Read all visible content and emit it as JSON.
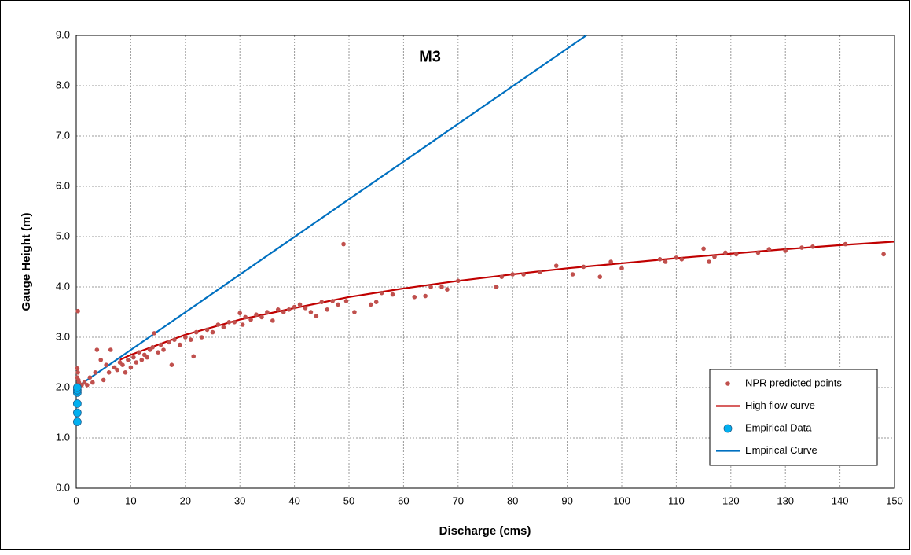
{
  "chart_data": {
    "type": "scatter",
    "title": "M3",
    "x_label": "Discharge (cms)",
    "y_label": "Gauge Height (m)",
    "xlim": [
      0,
      150
    ],
    "xticks": [
      0,
      10,
      20,
      30,
      40,
      50,
      60,
      70,
      80,
      90,
      100,
      110,
      120,
      130,
      140,
      150
    ],
    "ylim": [
      0,
      9
    ],
    "yticks": [
      {
        "value": 0,
        "label": "0.0"
      },
      {
        "value": 1,
        "label": "1.0"
      },
      {
        "value": 2,
        "label": "2.0"
      },
      {
        "value": 3,
        "label": "3.0"
      },
      {
        "value": 4,
        "label": "4.0"
      },
      {
        "value": 5,
        "label": "5.0"
      },
      {
        "value": 6,
        "label": "6.0"
      },
      {
        "value": 7,
        "label": "7.0"
      },
      {
        "value": 8,
        "label": "8.0"
      },
      {
        "value": 9,
        "label": "9.0"
      }
    ],
    "grid": true,
    "legend": "lower right",
    "series": [
      {
        "name": "NPR predicted points",
        "type": "scatter",
        "color": "#c0504d",
        "x": [
          0.3,
          0.2,
          0.3,
          0.2,
          0.4,
          0.5,
          1,
          1.5,
          2,
          2.5,
          3,
          3.5,
          3.8,
          4.5,
          5,
          5.5,
          6,
          6.3,
          7,
          7.5,
          8,
          8.5,
          9,
          9.5,
          10,
          10.5,
          11,
          11.5,
          12,
          12.5,
          13,
          13.5,
          14,
          14.3,
          15,
          15.5,
          16,
          17,
          17.5,
          18,
          19,
          20,
          21,
          21.5,
          22,
          23,
          24,
          25,
          26,
          27,
          28,
          29,
          30,
          30.5,
          31,
          32,
          33,
          34,
          35,
          36,
          37,
          38,
          39,
          40,
          41,
          42,
          43,
          44,
          45,
          46,
          47,
          48,
          49,
          49.5,
          51,
          54,
          55,
          56,
          58,
          62,
          64,
          65,
          67,
          68,
          70,
          77,
          78,
          80,
          82,
          85,
          88,
          91,
          93,
          96,
          98,
          100,
          107,
          108,
          110,
          111,
          115,
          116,
          117,
          119,
          121,
          125,
          127,
          130,
          133,
          135,
          141,
          148
        ],
        "values": [
          3.52,
          2.38,
          2.3,
          2.2,
          2.15,
          2.1,
          2.05,
          2.1,
          2.05,
          2.2,
          2.1,
          2.3,
          2.75,
          2.55,
          2.15,
          2.45,
          2.3,
          2.75,
          2.4,
          2.35,
          2.5,
          2.45,
          2.3,
          2.55,
          2.4,
          2.6,
          2.5,
          2.7,
          2.55,
          2.65,
          2.6,
          2.75,
          2.8,
          3.08,
          2.7,
          2.85,
          2.75,
          2.9,
          2.45,
          2.95,
          2.85,
          3.0,
          2.95,
          2.62,
          3.1,
          3.0,
          3.15,
          3.1,
          3.25,
          3.2,
          3.3,
          3.3,
          3.48,
          3.25,
          3.4,
          3.35,
          3.45,
          3.4,
          3.5,
          3.33,
          3.55,
          3.5,
          3.55,
          3.6,
          3.65,
          3.58,
          3.5,
          3.42,
          3.7,
          3.55,
          3.72,
          3.65,
          4.85,
          3.72,
          3.5,
          3.65,
          3.7,
          3.88,
          3.85,
          3.8,
          3.82,
          4.0,
          4.0,
          3.95,
          4.12,
          4.0,
          4.2,
          4.25,
          4.25,
          4.3,
          4.42,
          4.25,
          4.4,
          4.2,
          4.5,
          4.37,
          4.55,
          4.5,
          4.58,
          4.55,
          4.76,
          4.5,
          4.6,
          4.68,
          4.65,
          4.68,
          4.75,
          4.72,
          4.78,
          4.8,
          4.85,
          4.65
        ]
      },
      {
        "name": "High flow curve",
        "type": "line",
        "color": "#c00000",
        "x": [
          8,
          10,
          20,
          30,
          40,
          50,
          60,
          70,
          80,
          90,
          100,
          110,
          120,
          130,
          140,
          150
        ],
        "values": [
          2.55,
          2.65,
          3.05,
          3.35,
          3.58,
          3.8,
          3.97,
          4.12,
          4.25,
          4.37,
          4.47,
          4.57,
          4.66,
          4.75,
          4.83,
          4.9
        ]
      },
      {
        "name": "Empirical Data",
        "type": "dot",
        "color": "#00b0f0",
        "x": [
          0.2,
          0.2,
          0.2,
          0.2,
          0.2,
          0.2
        ],
        "values": [
          1.32,
          1.5,
          1.68,
          1.9,
          1.95,
          2.0
        ]
      },
      {
        "name": "Empirical Curve",
        "type": "line",
        "color": "#0070c0",
        "x": [
          0,
          93.5
        ],
        "values": [
          2.0,
          9.0
        ]
      }
    ]
  }
}
